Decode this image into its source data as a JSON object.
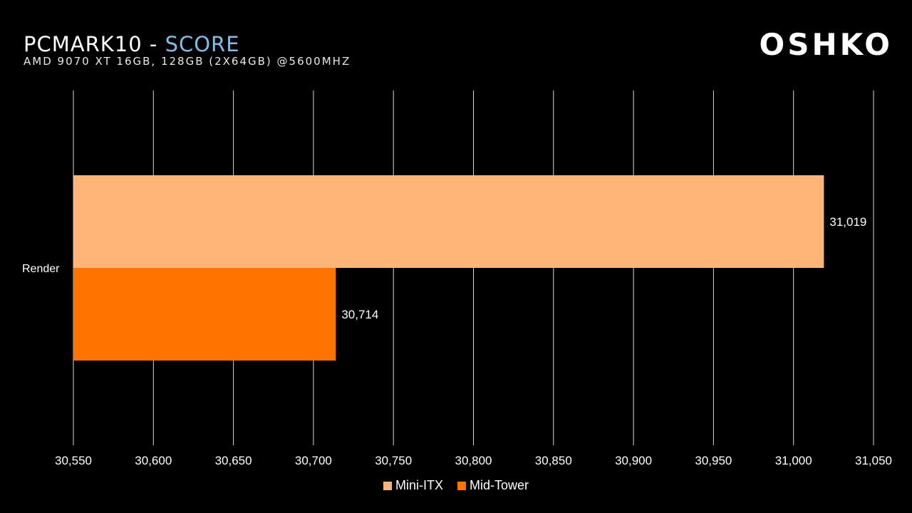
{
  "header": {
    "title_main": "PCMARK10 - ",
    "title_accent": "SCORE",
    "subtitle": "AMD 9070 XT 16GB, 128GB (2X64GB) @5600MHZ",
    "logo": "OSHKO"
  },
  "colors": {
    "background": "#000000",
    "accent": "#7cc0e8",
    "mini_itx": "#ffb578",
    "mid_tower": "#ff7300",
    "grid": "#d9d9d9"
  },
  "chart_data": {
    "type": "bar",
    "orientation": "horizontal",
    "categories": [
      "Render"
    ],
    "series": [
      {
        "name": "Mini-ITX",
        "values": [
          31019
        ],
        "labels": [
          "31,019"
        ]
      },
      {
        "name": "Mid-Tower",
        "values": [
          30714
        ],
        "labels": [
          "30,714"
        ]
      }
    ],
    "xlim": [
      30550,
      31050
    ],
    "xticks": [
      30550,
      30600,
      30650,
      30700,
      30750,
      30800,
      30850,
      30900,
      30950,
      31000,
      31050
    ],
    "xtick_labels": [
      "30,550",
      "30,600",
      "30,650",
      "30,700",
      "30,750",
      "30,800",
      "30,850",
      "30,900",
      "30,950",
      "31,000",
      "31,050"
    ],
    "grid": true,
    "legend_position": "bottom"
  }
}
